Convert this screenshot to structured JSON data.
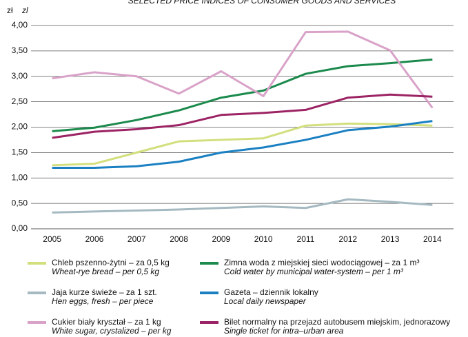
{
  "chart_data": {
    "type": "line",
    "title": "SELECTED PRICE INDICES OF CONSUMER GOODS AND SERVICES",
    "ylabel": "zł",
    "ylabel_en": "zl",
    "categories": [
      "2005",
      "2006",
      "2007",
      "2008",
      "2009",
      "2010",
      "2011",
      "2012",
      "2013",
      "2014"
    ],
    "ylim": [
      0,
      4
    ],
    "yticks": [
      {
        "value": 0,
        "label": "0,00"
      },
      {
        "value": 0.5,
        "label": "0,50"
      },
      {
        "value": 1,
        "label": "1,00"
      },
      {
        "value": 1.5,
        "label": "1,50"
      },
      {
        "value": 2,
        "label": "2,00"
      },
      {
        "value": 2.5,
        "label": "2,50"
      },
      {
        "value": 3,
        "label": "3,00"
      },
      {
        "value": 3.5,
        "label": "3,50"
      },
      {
        "value": 4,
        "label": "4,00"
      }
    ],
    "grid": true,
    "series": [
      {
        "name": "Chleb pszenno-żytni – za 0,5 kg",
        "name_en": "Wheat-rye bread – per 0,5 kg",
        "color": "#d3df7c",
        "values": [
          1.25,
          1.28,
          1.5,
          1.72,
          1.75,
          1.78,
          2.03,
          2.07,
          2.06,
          2.03
        ]
      },
      {
        "name": "Zimna woda z miejskiej sieci wodociągowej – za 1 m³",
        "name_en": "Cold water by municipal water-system – per 1 m³",
        "color": "#1b8a4c",
        "values": [
          1.92,
          1.99,
          2.14,
          2.33,
          2.58,
          2.72,
          3.05,
          3.2,
          3.26,
          3.33
        ]
      },
      {
        "name": "Jaja kurze świeże – za 1 szt.",
        "name_en": "Hen eggs, fresh – per piece",
        "color": "#a5b9c1",
        "values": [
          0.32,
          0.34,
          0.36,
          0.38,
          0.41,
          0.44,
          0.41,
          0.58,
          0.53,
          0.47
        ]
      },
      {
        "name": "Gazeta – dziennik lokalny",
        "name_en": "Local daily newspaper",
        "color": "#1a80c2",
        "values": [
          1.2,
          1.2,
          1.23,
          1.32,
          1.5,
          1.6,
          1.75,
          1.94,
          2.01,
          2.12
        ]
      },
      {
        "name": "Cukier biały kryształ – za 1 kg",
        "name_en": "White sugar, crystalized – per kg",
        "color": "#d9a2c8",
        "values": [
          2.96,
          3.08,
          3.0,
          2.66,
          3.1,
          2.61,
          3.87,
          3.88,
          3.51,
          2.38
        ]
      },
      {
        "name": "Bilet normalny na przejazd autobusem miejskim, jednorazowy",
        "name_en": "Single ticket for intra–urban area",
        "color": "#9c2364",
        "values": [
          1.79,
          1.91,
          1.96,
          2.04,
          2.24,
          2.28,
          2.34,
          2.58,
          2.64,
          2.6
        ]
      }
    ]
  }
}
